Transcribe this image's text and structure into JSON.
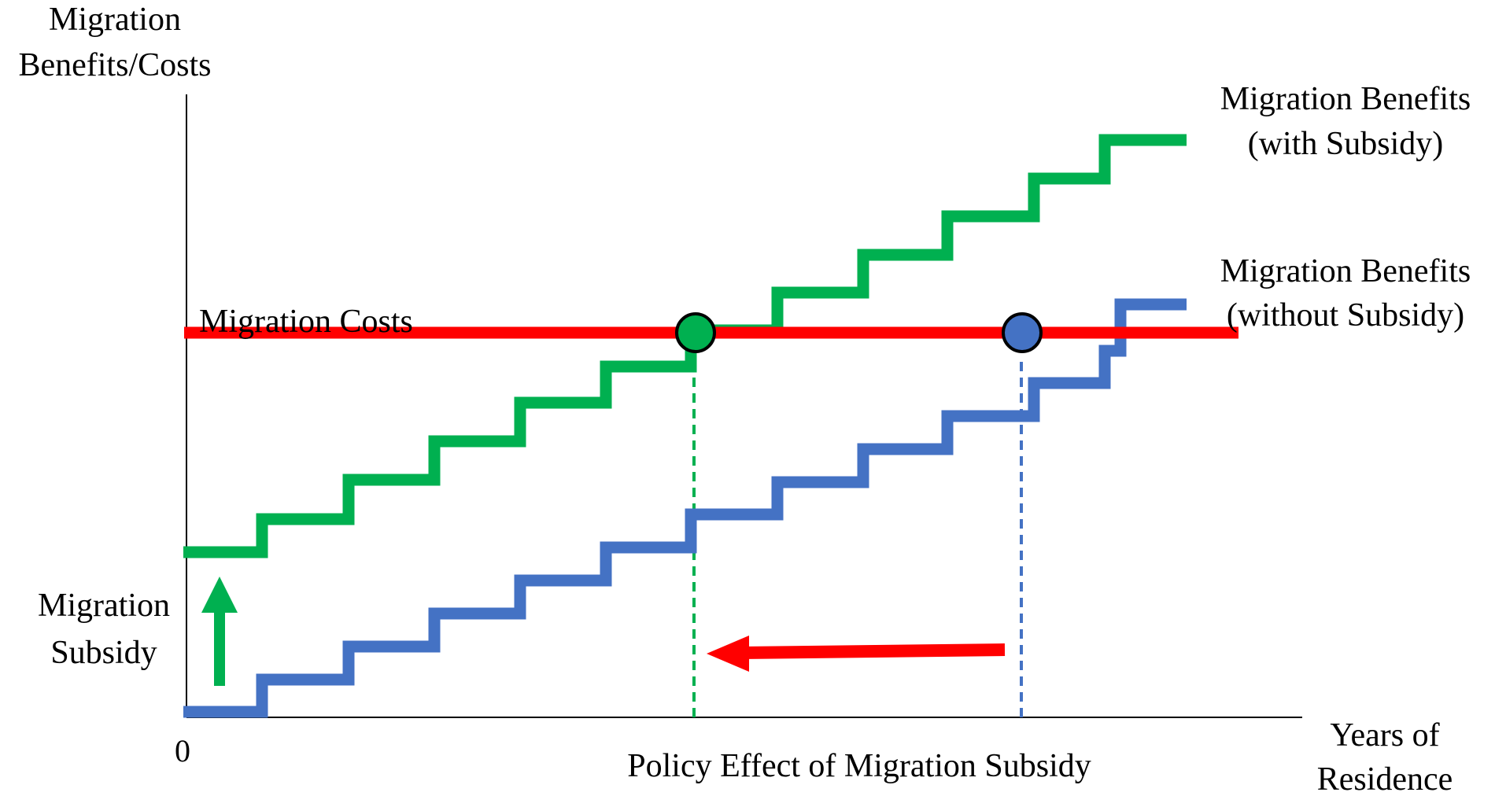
{
  "labels": {
    "y_axis_line1": "Migration",
    "y_axis_line2": "Benefits/Costs",
    "x_axis_line1": "Years of",
    "x_axis_line2": "Residence",
    "origin": "0",
    "costs": "Migration Costs",
    "with_subsidy_line1": "Migration Benefits",
    "with_subsidy_line2": "(with Subsidy)",
    "without_subsidy_line1": "Migration Benefits",
    "without_subsidy_line2": "(without Subsidy)",
    "subsidy_line1": "Migration",
    "subsidy_line2": "Subsidy",
    "policy_effect": "Policy Effect of Migration Subsidy"
  },
  "colors": {
    "with_subsidy": "#00B050",
    "without_subsidy": "#4472C4",
    "costs": "#FF0000",
    "axis": "#000000"
  }
}
